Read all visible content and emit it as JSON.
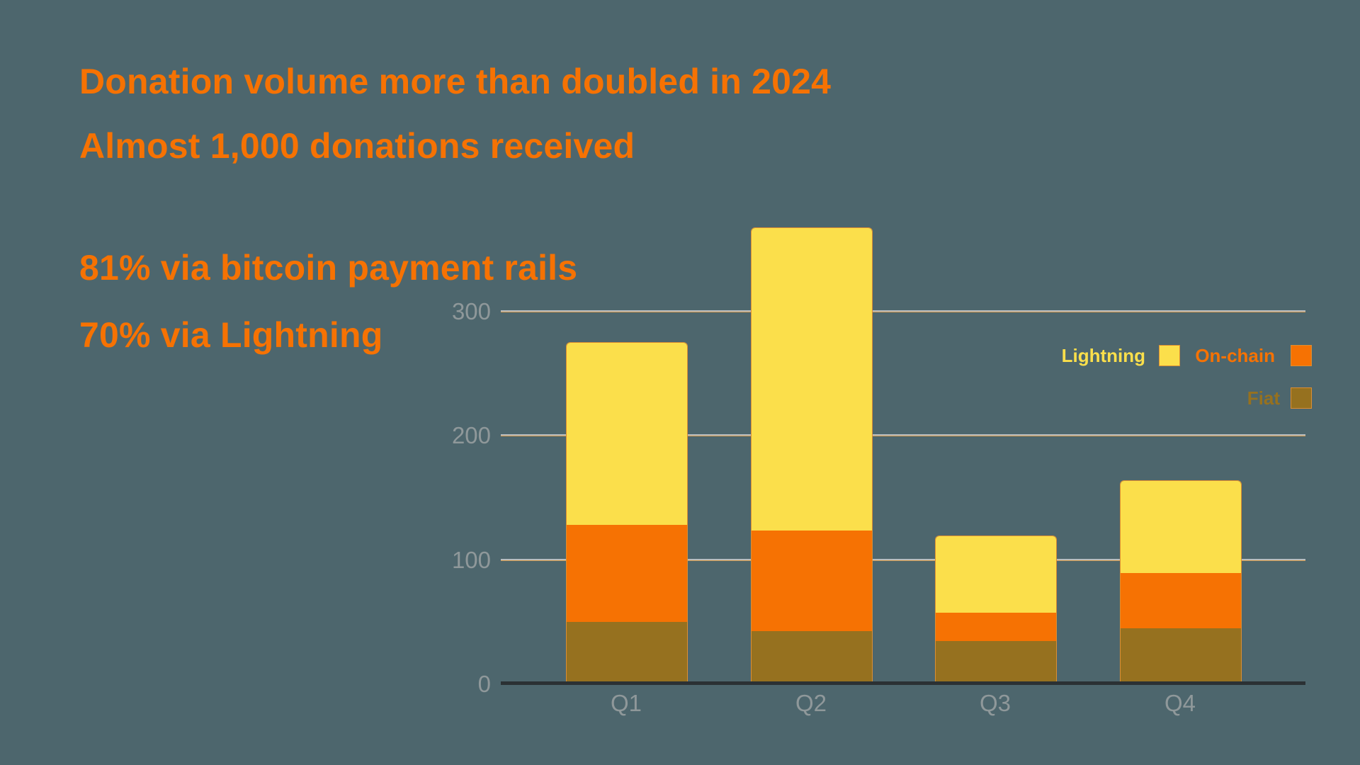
{
  "background_color": "#4D666D",
  "accent_color": "#F67203",
  "headline": {
    "line1": "Donation volume more than doubled in 2024",
    "line2": "Almost 1,000 donations received"
  },
  "stats": {
    "line1": "81% via bitcoin payment rails",
    "line2": "70% via Lightning"
  },
  "chart_data": {
    "type": "bar",
    "stacked": true,
    "categories": [
      "Q1",
      "Q2",
      "Q3",
      "Q4"
    ],
    "series": [
      {
        "name": "Lightning",
        "color": "#FBDF4B",
        "values": [
          147,
          244,
          62,
          74
        ]
      },
      {
        "name": "On-chain",
        "color": "#F67203",
        "values": [
          78,
          81,
          23,
          45
        ]
      },
      {
        "name": "Fiat",
        "color": "#96711F",
        "values": [
          50,
          43,
          35,
          45
        ]
      }
    ],
    "totals": [
      275,
      368,
      120,
      164
    ],
    "xlabel": "",
    "ylabel": "",
    "y_ticks": [
      0,
      100,
      200,
      300
    ],
    "ylim": [
      0,
      380
    ],
    "grid": true,
    "legend_position": "upper-right",
    "legend_order": [
      "Lightning",
      "On-chain",
      "Fiat"
    ],
    "axis_label_color": "#8F989A",
    "gridline_color": "#B8BDBF",
    "gridline_accent_color": "#D79B4D",
    "baseline_color": "#2B3134",
    "bar_outline_color": "#DC8E33"
  }
}
